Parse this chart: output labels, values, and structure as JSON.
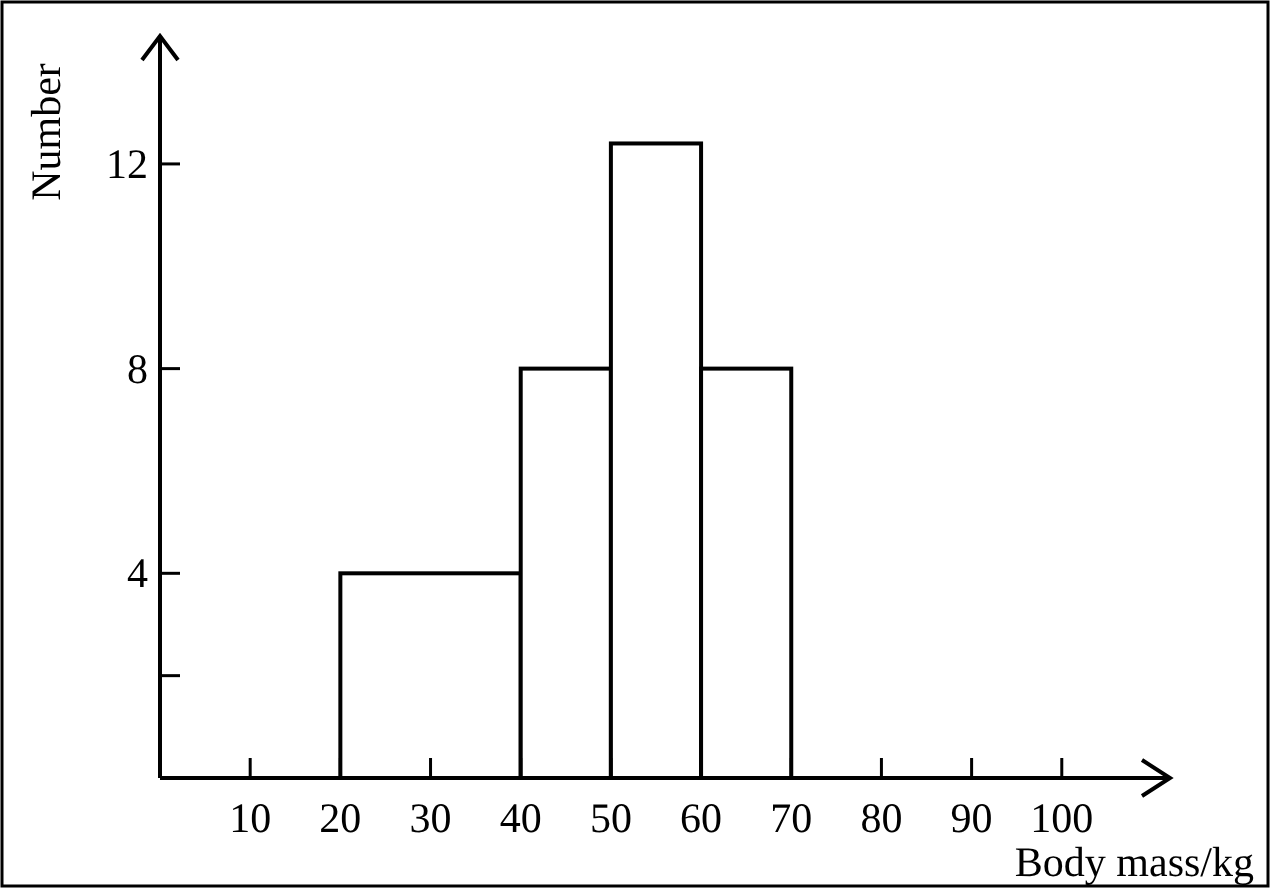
{
  "chart_data": {
    "type": "histogram",
    "xlabel": "Body mass/kg",
    "ylabel": "Number",
    "bins": [
      20,
      40,
      50,
      60,
      70
    ],
    "values": [
      4,
      8,
      12.4,
      8
    ],
    "color": "#ffffff",
    "xlim": [
      0,
      112
    ],
    "ylim": [
      0,
      14.5
    ],
    "xticks": [
      10,
      20,
      30,
      40,
      50,
      60,
      70,
      80,
      90,
      100
    ],
    "yticks": [
      {
        "value": 2,
        "label": null
      },
      4,
      8,
      12
    ],
    "grid": false
  }
}
